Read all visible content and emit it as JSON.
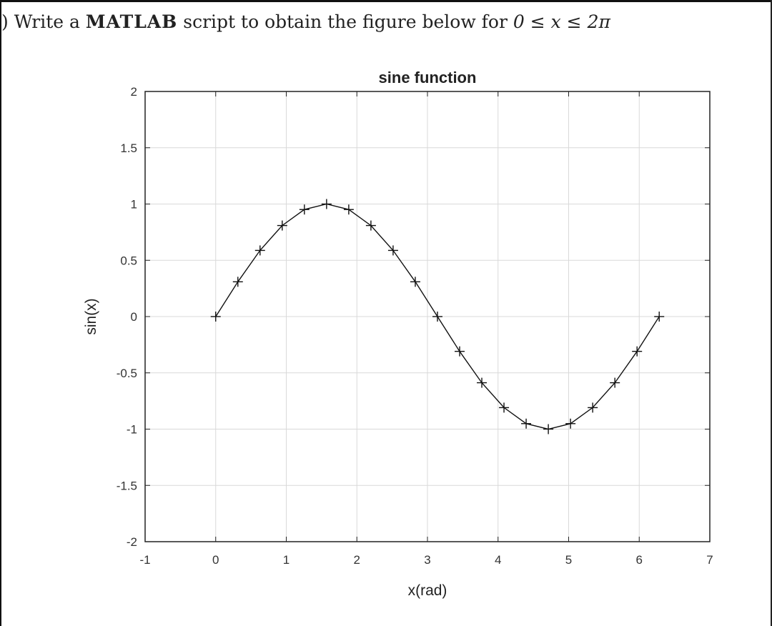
{
  "question": {
    "number_mark": ")",
    "text_before": "Write a ",
    "software": "MATLAB",
    "text_after": " script to obtain the figure below  for ",
    "range": "0 ≤ x ≤ 2π"
  },
  "chart_data": {
    "type": "line",
    "title": "sine function",
    "xlabel": "x(rad)",
    "ylabel": "sin(x)",
    "xlim": [
      -1,
      7
    ],
    "ylim": [
      -2,
      2
    ],
    "xticks": [
      -1,
      0,
      1,
      2,
      3,
      4,
      5,
      6,
      7
    ],
    "yticks": [
      -2,
      -1.5,
      -1,
      -0.5,
      0,
      0.5,
      1,
      1.5,
      2
    ],
    "xtick_labels": [
      "-1",
      "0",
      "1",
      "2",
      "3",
      "4",
      "5",
      "6",
      "7"
    ],
    "ytick_labels": [
      "-2",
      "-1.5",
      "-1",
      "-0.5",
      "0",
      "0.5",
      "1",
      "1.5",
      "2"
    ],
    "grid": true,
    "line_color": "#111111",
    "grid_color": "#d9d9d9",
    "series": [
      {
        "marker": "+",
        "x": [
          0,
          0.3142,
          0.6283,
          0.9425,
          1.2566,
          1.5708,
          1.885,
          2.1991,
          2.5133,
          2.8274,
          3.1416,
          3.4558,
          3.7699,
          4.0841,
          4.3982,
          4.7124,
          5.0265,
          5.3407,
          5.6549,
          5.969,
          6.2832
        ],
        "y": [
          0,
          0.309,
          0.5878,
          0.809,
          0.9511,
          1,
          0.9511,
          0.809,
          0.5878,
          0.309,
          0,
          -0.309,
          -0.5878,
          -0.809,
          -0.9511,
          -1,
          -0.9511,
          -0.809,
          -0.5878,
          -0.309,
          0
        ]
      }
    ]
  }
}
